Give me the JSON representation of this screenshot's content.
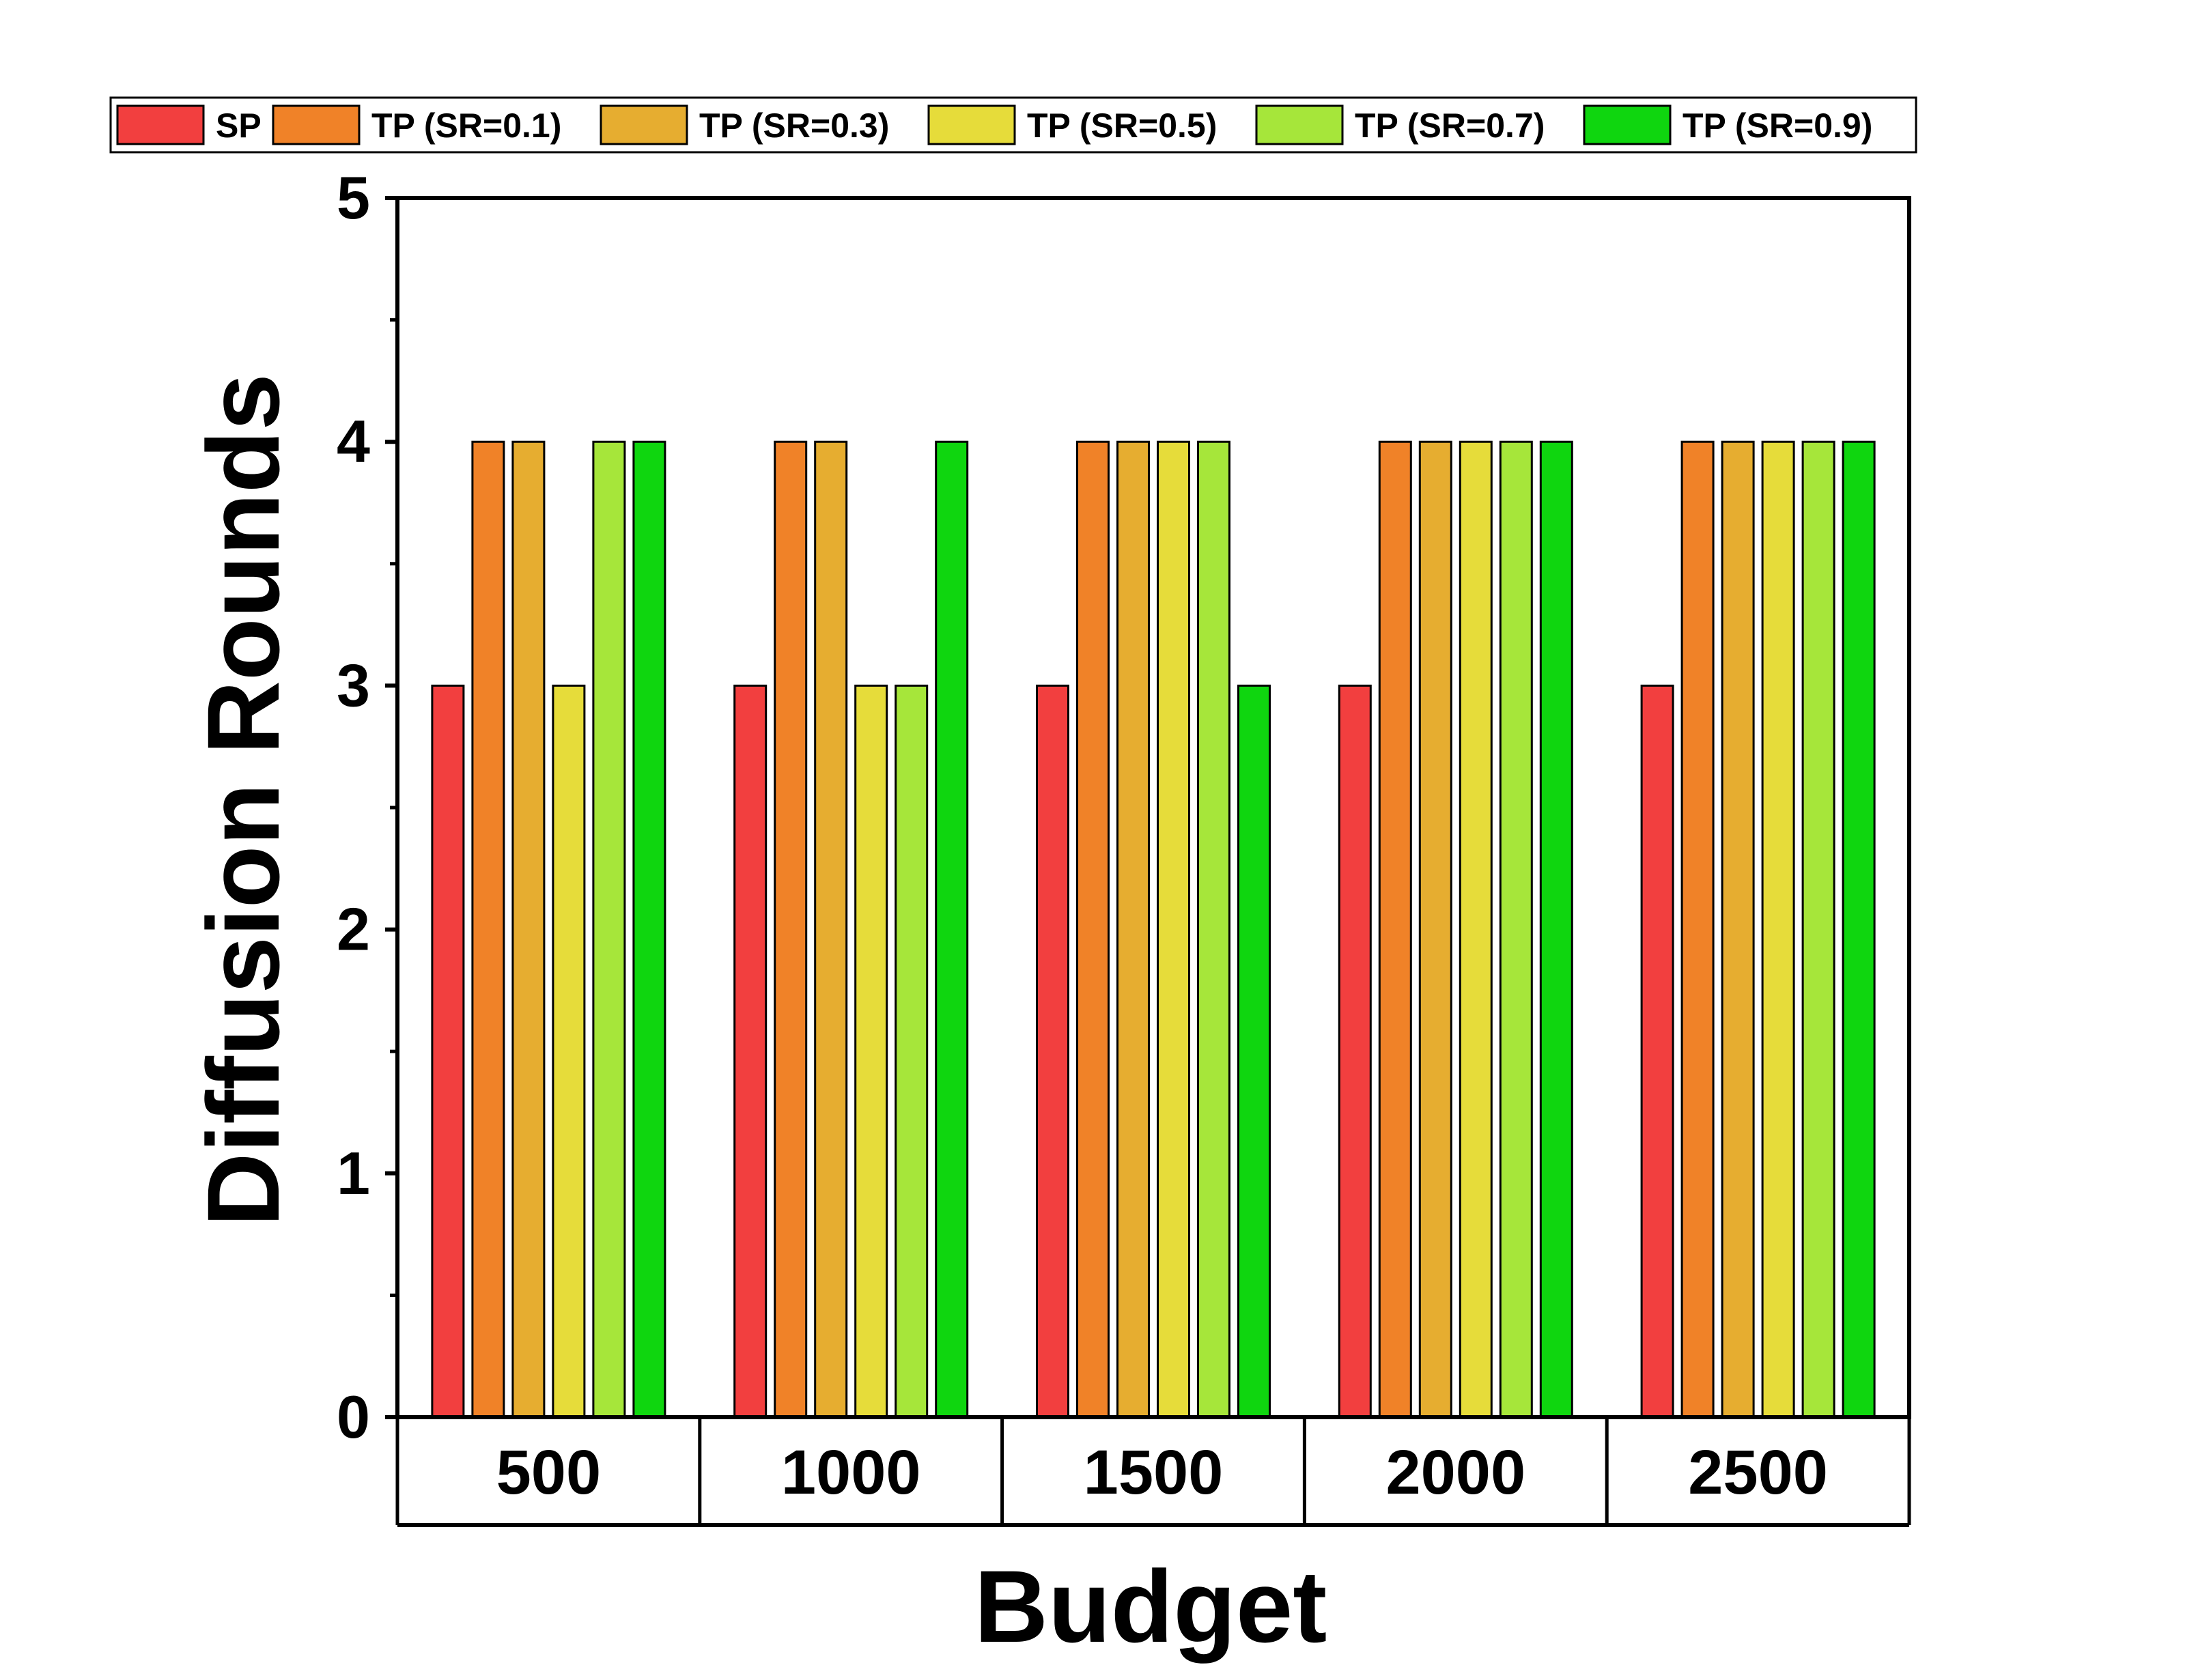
{
  "chart_data": {
    "type": "bar",
    "title": "",
    "xlabel": "Budget",
    "ylabel": "Diffusion Rounds",
    "categories": [
      "500",
      "1000",
      "1500",
      "2000",
      "2500"
    ],
    "ylim": [
      0,
      5
    ],
    "yticks": [
      0,
      1,
      2,
      3,
      4,
      5
    ],
    "grid": false,
    "legend_position": "top",
    "series": [
      {
        "name": "SP",
        "color": "#f23f3f",
        "values": [
          3,
          3,
          3,
          3,
          3
        ]
      },
      {
        "name": "TP (SR=0.1)",
        "color": "#f08228",
        "values": [
          4,
          4,
          4,
          4,
          4
        ]
      },
      {
        "name": "TP (SR=0.3)",
        "color": "#e6ad30",
        "values": [
          4,
          4,
          4,
          4,
          4
        ]
      },
      {
        "name": "TP (SR=0.5)",
        "color": "#e6dc3a",
        "values": [
          3,
          3,
          4,
          4,
          4
        ]
      },
      {
        "name": "TP (SR=0.7)",
        "color": "#a6e63a",
        "values": [
          4,
          3,
          4,
          4,
          4
        ]
      },
      {
        "name": "TP (SR=0.9)",
        "color": "#0fd60f",
        "values": [
          4,
          4,
          3,
          4,
          4
        ]
      }
    ]
  }
}
